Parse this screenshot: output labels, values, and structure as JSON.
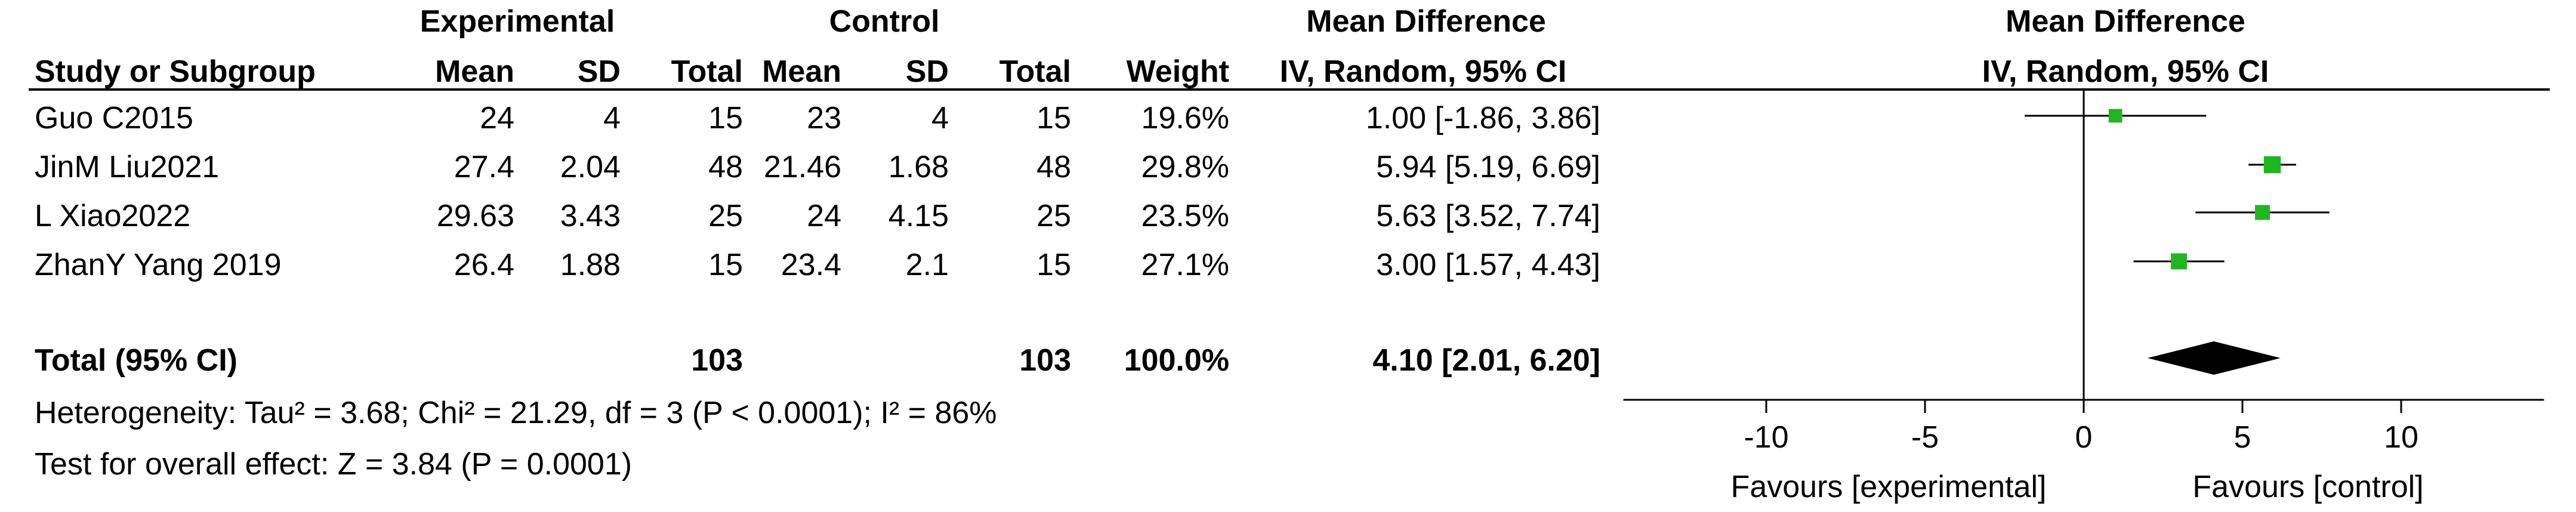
{
  "headers": {
    "group_experimental": "Experimental",
    "group_control": "Control",
    "group_effect": "Mean Difference",
    "study": "Study or Subgroup",
    "mean_e": "Mean",
    "sd_e": "SD",
    "total_e": "Total",
    "mean_c": "Mean",
    "sd_c": "SD",
    "total_c": "Total",
    "weight": "Weight",
    "method": "IV, Random, 95% CI",
    "plot_title": "Mean Difference",
    "plot_method": "IV, Random, 95% CI"
  },
  "studies": [
    {
      "name": "Guo C2015",
      "mean_e": "24",
      "sd_e": "4",
      "total_e": "15",
      "mean_c": "23",
      "sd_c": "4",
      "total_c": "15",
      "weight": "19.6%",
      "ci_text": "1.00 [-1.86, 3.86]"
    },
    {
      "name": "JinM Liu2021",
      "mean_e": "27.4",
      "sd_e": "2.04",
      "total_e": "48",
      "mean_c": "21.46",
      "sd_c": "1.68",
      "total_c": "48",
      "weight": "29.8%",
      "ci_text": "5.94 [5.19, 6.69]"
    },
    {
      "name": "L Xiao2022",
      "mean_e": "29.63",
      "sd_e": "3.43",
      "total_e": "25",
      "mean_c": "24",
      "sd_c": "4.15",
      "total_c": "25",
      "weight": "23.5%",
      "ci_text": "5.63 [3.52, 7.74]"
    },
    {
      "name": "ZhanY Yang 2019",
      "mean_e": "26.4",
      "sd_e": "1.88",
      "total_e": "15",
      "mean_c": "23.4",
      "sd_c": "2.1",
      "total_c": "15",
      "weight": "27.1%",
      "ci_text": "3.00 [1.57, 4.43]"
    }
  ],
  "total": {
    "label": "Total (95% CI)",
    "total_e": "103",
    "total_c": "103",
    "weight": "100.0%",
    "ci_text": "4.10 [2.01, 6.20]"
  },
  "footer": {
    "heterogeneity": "Heterogeneity: Tau² = 3.68; Chi² = 21.29, df = 3 (P < 0.0001); I² = 86%",
    "overall": "Test for overall effect: Z = 3.84 (P = 0.0001)"
  },
  "axis": {
    "favours_left": "Favours [experimental]",
    "favours_right": "Favours [control]"
  },
  "colors": {
    "study_marker": "#1fb71f",
    "summary_diamond": "#000000",
    "line": "#000000"
  },
  "chart_data": {
    "type": "scatter",
    "title": "",
    "xlabel": "",
    "ylabel": "",
    "xlim": [
      -14.5,
      14.5
    ],
    "x_ticks": [
      -10,
      -5,
      0,
      5,
      10
    ],
    "null_line": 0,
    "grid": false,
    "series": [
      {
        "name": "",
        "points": [
          {
            "study": "Guo C2015",
            "estimate": 1.0,
            "lower": -1.86,
            "upper": 3.86,
            "weight": 19.6
          },
          {
            "study": "JinM Liu2021",
            "estimate": 5.94,
            "lower": 5.19,
            "upper": 6.69,
            "weight": 29.8
          },
          {
            "study": "L Xiao2022",
            "estimate": 5.63,
            "lower": 3.52,
            "upper": 7.74,
            "weight": 23.5
          },
          {
            "study": "ZhanY Yang 2019",
            "estimate": 3.0,
            "lower": 1.57,
            "upper": 4.43,
            "weight": 27.1
          }
        ]
      }
    ],
    "summary": {
      "estimate": 4.1,
      "lower": 2.01,
      "upper": 6.2
    }
  }
}
